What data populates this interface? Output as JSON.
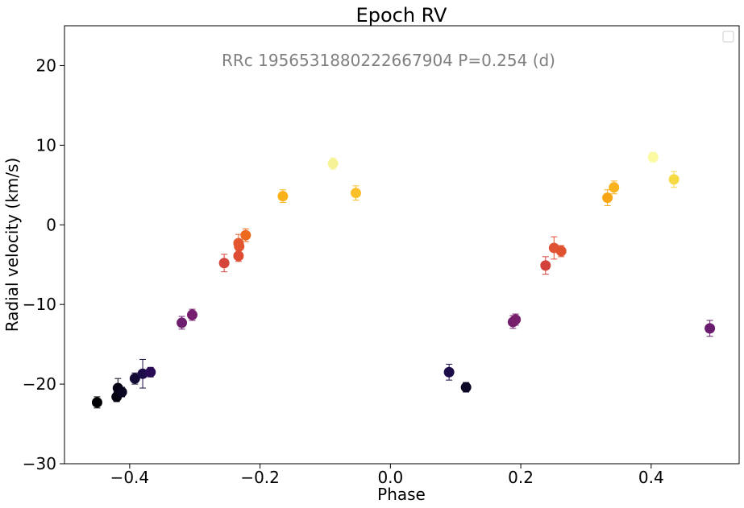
{
  "chart_data": {
    "type": "scatter",
    "title": "Epoch RV",
    "xlabel": "Phase",
    "ylabel": "Radial velocity (km/s)",
    "annotation": "RRc 1956531880222667904 P=0.254 (d)",
    "xlim": [
      -0.5,
      0.535
    ],
    "ylim": [
      -30,
      25
    ],
    "xticks": [
      -0.4,
      -0.2,
      0.0,
      0.2,
      0.4
    ],
    "xtick_labels": [
      "−0.4",
      "−0.2",
      "0.0",
      "0.2",
      "0.4"
    ],
    "yticks": [
      -30,
      -20,
      -10,
      0,
      10,
      20
    ],
    "ytick_labels": [
      "−30",
      "−20",
      "−10",
      "0",
      "10",
      "20"
    ],
    "grid": false,
    "legend": "top-right (empty)",
    "colormap": "inferno",
    "points": [
      {
        "x": -0.45,
        "y": -22.3,
        "err": 0.7,
        "color": "#000004"
      },
      {
        "x": -0.42,
        "y": -21.6,
        "err": 0.6,
        "color": "#04030f"
      },
      {
        "x": -0.418,
        "y": -20.5,
        "err": 1.2,
        "color": "#060415"
      },
      {
        "x": -0.412,
        "y": -21.0,
        "err": 0.6,
        "color": "#0a0620"
      },
      {
        "x": -0.392,
        "y": -19.3,
        "err": 0.7,
        "color": "#130a35"
      },
      {
        "x": -0.38,
        "y": -18.7,
        "err": 1.8,
        "color": "#1c0c48"
      },
      {
        "x": -0.368,
        "y": -18.5,
        "err": 0.6,
        "color": "#280b54"
      },
      {
        "x": -0.32,
        "y": -12.3,
        "err": 0.8,
        "color": "#6e1f6f"
      },
      {
        "x": -0.304,
        "y": -11.3,
        "err": 0.7,
        "color": "#761f6e"
      },
      {
        "x": -0.255,
        "y": -4.8,
        "err": 1.1,
        "color": "#d6453b"
      },
      {
        "x": -0.233,
        "y": -2.3,
        "err": 1.1,
        "color": "#e35a2f"
      },
      {
        "x": -0.232,
        "y": -2.7,
        "err": 0.8,
        "color": "#e3552f"
      },
      {
        "x": -0.233,
        "y": -3.9,
        "err": 0.7,
        "color": "#de4d33"
      },
      {
        "x": -0.222,
        "y": -1.3,
        "err": 0.8,
        "color": "#ec6a1f"
      },
      {
        "x": -0.165,
        "y": 3.6,
        "err": 0.8,
        "color": "#f9b218"
      },
      {
        "x": -0.088,
        "y": 7.7,
        "err": 0.7,
        "color": "#f6f396"
      },
      {
        "x": -0.053,
        "y": 4.0,
        "err": 0.9,
        "color": "#fac02a"
      },
      {
        "x": 0.09,
        "y": -18.5,
        "err": 1.0,
        "color": "#1d0c4a"
      },
      {
        "x": 0.116,
        "y": -20.4,
        "err": 0.6,
        "color": "#0d0726"
      },
      {
        "x": 0.188,
        "y": -12.2,
        "err": 0.8,
        "color": "#741f6e"
      },
      {
        "x": 0.192,
        "y": -11.9,
        "err": 0.7,
        "color": "#79206d"
      },
      {
        "x": 0.238,
        "y": -5.1,
        "err": 1.1,
        "color": "#d4423c"
      },
      {
        "x": 0.251,
        "y": -2.9,
        "err": 1.4,
        "color": "#e05234"
      },
      {
        "x": 0.262,
        "y": -3.3,
        "err": 0.7,
        "color": "#e0512f"
      },
      {
        "x": 0.333,
        "y": 3.4,
        "err": 1.0,
        "color": "#f8a516"
      },
      {
        "x": 0.343,
        "y": 4.7,
        "err": 0.8,
        "color": "#fab31c"
      },
      {
        "x": 0.403,
        "y": 8.5,
        "err": 0.6,
        "color": "#fbfaa0"
      },
      {
        "x": 0.435,
        "y": 5.7,
        "err": 1.0,
        "color": "#f5da44"
      },
      {
        "x": 0.49,
        "y": -13.0,
        "err": 1.0,
        "color": "#6a1c6e"
      }
    ]
  }
}
